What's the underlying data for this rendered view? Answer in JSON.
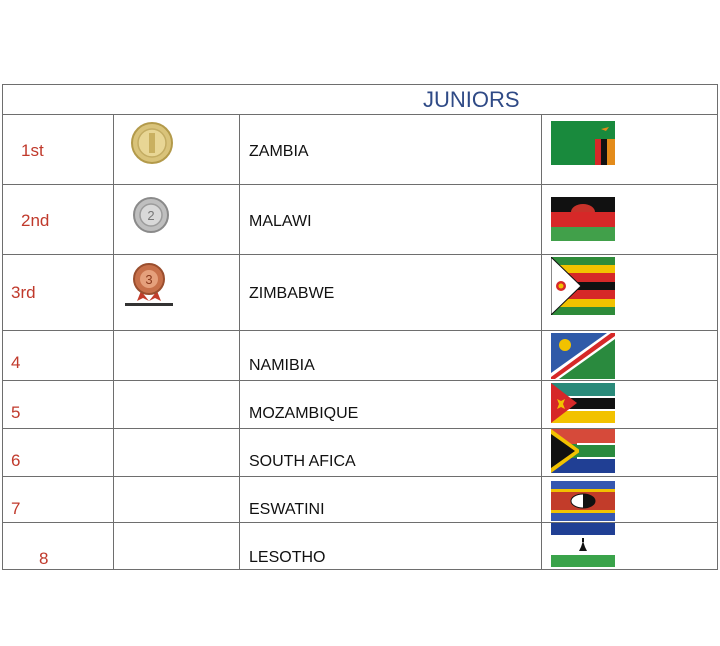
{
  "header": {
    "title": "JUNIORS"
  },
  "rows": [
    {
      "rank": "1st",
      "medal": "gold-medal-icon",
      "country": "ZAMBIA",
      "flag": "zambia-flag-icon"
    },
    {
      "rank": "2nd",
      "medal": "silver-medal-icon",
      "country": "MALAWI",
      "flag": "malawi-flag-icon"
    },
    {
      "rank": "3rd",
      "medal": "bronze-medal-icon",
      "country": "ZIMBABWE",
      "flag": "zimbabwe-flag-icon"
    },
    {
      "rank": "4",
      "country": "NAMIBIA",
      "flag": "namibia-flag-icon"
    },
    {
      "rank": "5",
      "country": "MOZAMBIQUE",
      "flag": "mozambique-flag-icon"
    },
    {
      "rank": "6",
      "country": "SOUTH AFICA",
      "flag": "south-africa-flag-icon"
    },
    {
      "rank": "7",
      "country": "ESWATINI",
      "flag": "eswatini-flag-icon"
    },
    {
      "rank": "8",
      "country": "LESOTHO",
      "flag": "lesotho-flag-icon"
    }
  ],
  "colors": {
    "title": "#2f4a86",
    "rank": "#c0392b",
    "grid": "#6e6e6e"
  }
}
